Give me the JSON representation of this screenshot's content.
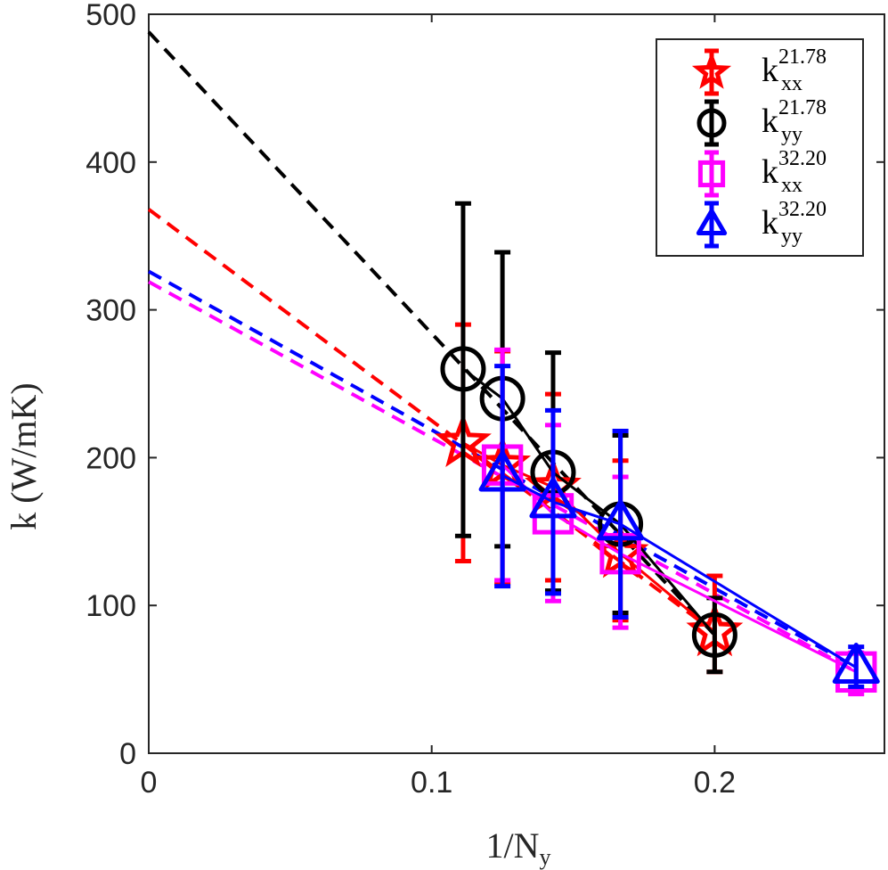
{
  "chart_data": {
    "type": "scatter",
    "title": "",
    "xlabel": {
      "base": "1/N",
      "sub": "y"
    },
    "ylabel": "k (W/mK)",
    "xlim": [
      0,
      0.26
    ],
    "ylim": [
      0,
      500
    ],
    "xticks": [
      0,
      0.1,
      0.2
    ],
    "xtick_labels": [
      "0",
      "0.1",
      "0.2"
    ],
    "yticks": [
      0,
      100,
      200,
      300,
      400,
      500
    ],
    "ytick_labels": [
      "0",
      "100",
      "200",
      "300",
      "400",
      "500"
    ],
    "legend_position": "top-right",
    "series": [
      {
        "name": "kxx 21.78",
        "legend": {
          "base": "k",
          "sub": "xx",
          "sup": "21.78"
        },
        "color": "#ff0000",
        "marker": "star",
        "points": [
          {
            "x": 0.1111,
            "y": 210,
            "lo": 130,
            "hi": 290
          },
          {
            "x": 0.125,
            "y": 195,
            "lo": 115,
            "hi": 272
          },
          {
            "x": 0.1429,
            "y": 180,
            "lo": 117,
            "hi": 243
          },
          {
            "x": 0.1667,
            "y": 135,
            "lo": 90,
            "hi": 198
          },
          {
            "x": 0.2,
            "y": 82,
            "lo": 55,
            "hi": 120
          }
        ],
        "fit": {
          "intercept": 368,
          "x_end": 0.2
        }
      },
      {
        "name": "kyy 21.78",
        "legend": {
          "base": "k",
          "sub": "yy",
          "sup": "21.78"
        },
        "color": "#000000",
        "marker": "circle",
        "points": [
          {
            "x": 0.1111,
            "y": 260,
            "lo": 147,
            "hi": 372
          },
          {
            "x": 0.125,
            "y": 240,
            "lo": 140,
            "hi": 339
          },
          {
            "x": 0.1429,
            "y": 190,
            "lo": 110,
            "hi": 271
          },
          {
            "x": 0.1667,
            "y": 155,
            "lo": 95,
            "hi": 215
          },
          {
            "x": 0.2,
            "y": 80,
            "lo": 55,
            "hi": 105
          }
        ],
        "fit": {
          "intercept": 488,
          "x_end": 0.2
        }
      },
      {
        "name": "kxx 32.20",
        "legend": {
          "base": "k",
          "sub": "xx",
          "sup": "32.20"
        },
        "color": "#ff00ff",
        "marker": "square",
        "points": [
          {
            "x": 0.125,
            "y": 195,
            "lo": 117,
            "hi": 273
          },
          {
            "x": 0.1429,
            "y": 162,
            "lo": 103,
            "hi": 222
          },
          {
            "x": 0.1667,
            "y": 135,
            "lo": 85,
            "hi": 187
          },
          {
            "x": 0.25,
            "y": 55,
            "lo": 40,
            "hi": 68
          }
        ],
        "fit": {
          "intercept": 319,
          "x_end": 0.25
        }
      },
      {
        "name": "kyy 32.20",
        "legend": {
          "base": "k",
          "sub": "yy",
          "sup": "32.20"
        },
        "color": "#0000ff",
        "marker": "triangle",
        "points": [
          {
            "x": 0.125,
            "y": 188,
            "lo": 113,
            "hi": 262
          },
          {
            "x": 0.1429,
            "y": 170,
            "lo": 108,
            "hi": 232
          },
          {
            "x": 0.1667,
            "y": 155,
            "lo": 92,
            "hi": 218
          },
          {
            "x": 0.25,
            "y": 58,
            "lo": 45,
            "hi": 72
          }
        ],
        "fit": {
          "intercept": 326,
          "x_end": 0.25
        }
      }
    ]
  }
}
